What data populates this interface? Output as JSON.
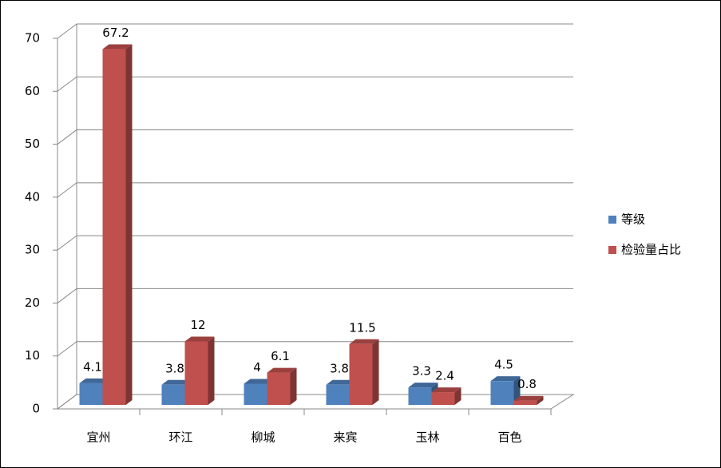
{
  "chart_data": {
    "type": "bar3d",
    "categories": [
      "宜州",
      "环江",
      "柳城",
      "来宾",
      "玉林",
      "百色"
    ],
    "series": [
      {
        "name": "等级",
        "color": "#4f81bd",
        "values": [
          4.1,
          3.8,
          4,
          3.8,
          3.3,
          4.5
        ]
      },
      {
        "name": "检验量占比",
        "color": "#c0504d",
        "values": [
          67.2,
          12,
          6.1,
          11.5,
          2.4,
          0.8
        ]
      }
    ],
    "ylim": [
      0,
      70
    ],
    "yticks": [
      0,
      10,
      20,
      30,
      40,
      50,
      60,
      70
    ],
    "grid": true,
    "legend": "right"
  }
}
